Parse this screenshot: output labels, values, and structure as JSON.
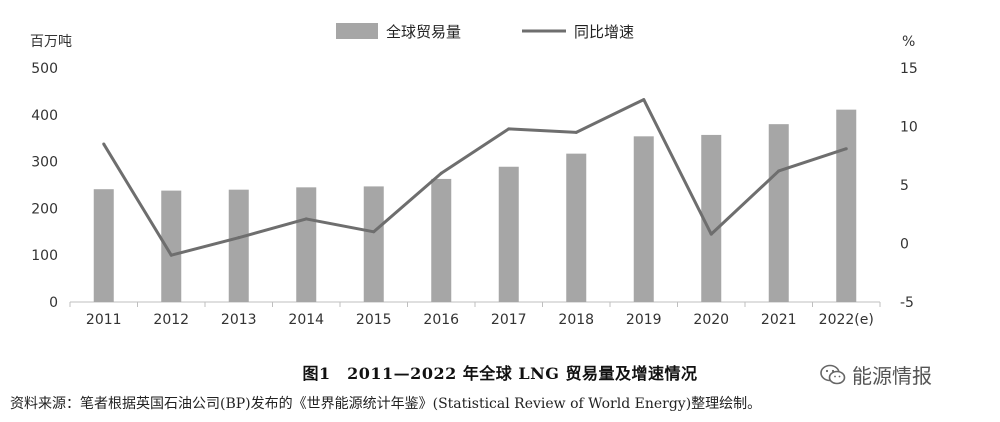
{
  "chart_data": {
    "type": "bar+line",
    "categories": [
      "2011",
      "2012",
      "2013",
      "2014",
      "2015",
      "2016",
      "2017",
      "2018",
      "2019",
      "2020",
      "2021",
      "2022(e)"
    ],
    "series": [
      {
        "name": "全球贸易量",
        "kind": "bar",
        "axis": "left",
        "values": [
          241,
          238,
          240,
          245,
          247,
          263,
          289,
          317,
          354,
          357,
          380,
          411
        ]
      },
      {
        "name": "同比增速",
        "kind": "line",
        "axis": "right",
        "values": [
          8.5,
          -1.0,
          0.5,
          2.1,
          1.0,
          6.0,
          9.8,
          9.5,
          12.3,
          0.8,
          6.2,
          8.1
        ]
      }
    ],
    "left_axis": {
      "unit": "百万吨",
      "ticks": [
        "0",
        "100",
        "200",
        "300",
        "400",
        "500"
      ],
      "min": 0,
      "max": 500
    },
    "right_axis": {
      "unit": "%",
      "ticks": [
        "-5",
        "0",
        "5",
        "10",
        "15"
      ],
      "min": -5,
      "max": 15
    },
    "colors": {
      "bar": "#a6a6a6",
      "line": "#6e6e6e",
      "axis": "#bfbfbf"
    }
  },
  "caption": "图1　2011—2022 年全球 LNG 贸易量及增速情况",
  "source": "资料来源：笔者根据英国石油公司(BP)发布的《世界能源统计年鉴》(Statistical Review of World Energy)整理绘制。",
  "watermark": {
    "text": "能源情报",
    "icon": "wechat-icon"
  }
}
